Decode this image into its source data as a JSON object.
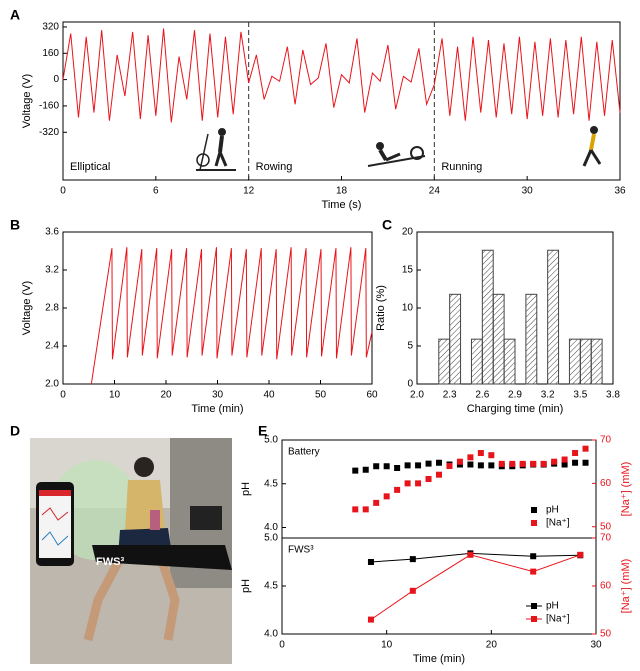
{
  "panel_labels": [
    "A",
    "B",
    "C",
    "D",
    "E"
  ],
  "photo": {
    "label": "FWS³"
  },
  "chart_data": [
    {
      "type": "line",
      "color": "#e8141b",
      "x": [
        0,
        0.5,
        1,
        1.5,
        2,
        2.5,
        3,
        3.5,
        4,
        4.5,
        5,
        5.5,
        6,
        6.5,
        7,
        7.5,
        8,
        8.5,
        9,
        9.5,
        10,
        10.5,
        11,
        11.5,
        12,
        12.5,
        13,
        13.5,
        14,
        14.5,
        15,
        15.5,
        16,
        16.5,
        17,
        17.5,
        18,
        18.5,
        19,
        19.5,
        20,
        20.5,
        21,
        21.5,
        22,
        22.5,
        23,
        23.5,
        24,
        24.5,
        25,
        25.5,
        26,
        26.5,
        27,
        27.5,
        28,
        28.5,
        29,
        29.5,
        30,
        30.5,
        31,
        31.5,
        32,
        32.5,
        33,
        33.5,
        34,
        34.5,
        35,
        35.5,
        36
      ],
      "values": [
        0,
        280,
        -230,
        260,
        -200,
        300,
        -250,
        150,
        -100,
        290,
        -240,
        270,
        -220,
        310,
        -260,
        140,
        -120,
        300,
        -250,
        280,
        -230,
        260,
        -210,
        290,
        -20,
        150,
        -120,
        20,
        -10,
        200,
        -150,
        180,
        -30,
        10,
        220,
        -170,
        30,
        -20,
        250,
        -200,
        40,
        -10,
        210,
        -180,
        20,
        -15,
        190,
        -150,
        -30,
        250,
        -220,
        200,
        -250,
        260,
        -200,
        240,
        -230,
        220,
        -210,
        260,
        -240,
        230,
        -220,
        250,
        -230,
        240,
        -210,
        260,
        -250,
        230,
        -220,
        240,
        -200
      ],
      "xlim": [
        0,
        36
      ],
      "ylim": [
        -610,
        350
      ],
      "xticks": [
        0,
        6,
        12,
        18,
        24,
        30,
        36
      ],
      "yticks": [
        -320,
        -160,
        0,
        160,
        320
      ],
      "x_label": "Time (s)",
      "y_label": "Voltage (V)",
      "vlines": [
        12,
        24
      ],
      "annotations": [
        "Elliptical",
        "Rowing",
        "Running"
      ]
    },
    {
      "type": "line",
      "color": "#e8141b",
      "x": [
        5.5,
        9.5,
        9.6,
        12.4,
        12.5,
        15.3,
        15.4,
        18.2,
        18.3,
        21.1,
        21.2,
        24,
        24.1,
        26.9,
        27,
        29.8,
        29.9,
        32.7,
        32.8,
        35.6,
        35.7,
        38.5,
        38.6,
        41.4,
        41.5,
        44.3,
        44.4,
        47.2,
        47.3,
        50.1,
        50.2,
        53,
        53.1,
        55.9,
        56,
        58.8,
        58.9,
        60
      ],
      "values": [
        2.0,
        3.43,
        2.26,
        3.44,
        2.28,
        3.42,
        2.3,
        3.43,
        2.27,
        3.42,
        2.3,
        3.43,
        2.28,
        3.42,
        2.3,
        3.44,
        2.27,
        3.43,
        2.3,
        3.42,
        2.28,
        3.43,
        2.3,
        3.42,
        2.26,
        3.44,
        2.3,
        3.43,
        2.28,
        3.42,
        2.29,
        3.43,
        2.27,
        3.44,
        2.3,
        3.43,
        2.28,
        2.55
      ],
      "xlim": [
        0,
        60
      ],
      "ylim": [
        2.0,
        3.6
      ],
      "xticks": [
        0,
        10,
        20,
        30,
        40,
        50,
        60
      ],
      "yticks": [
        {
          "value": 2.0,
          "label": "2.0"
        },
        2.4,
        2.8,
        3.2,
        3.6
      ],
      "x_label": "Time (min)",
      "y_label": "Voltage (V)"
    },
    {
      "type": "histogram",
      "color": "#444444",
      "bins": [
        2.2,
        2.3,
        2.4,
        2.5,
        2.6,
        2.7,
        2.8,
        2.9,
        3.0,
        3.1,
        3.2,
        3.3,
        3.4,
        3.5,
        3.6,
        3.7
      ],
      "values": [
        5.9,
        11.8,
        0,
        5.9,
        17.6,
        11.8,
        5.9,
        0,
        11.8,
        0,
        17.6,
        0,
        5.9,
        5.9,
        5.9
      ],
      "xlim": [
        2.0,
        3.8
      ],
      "ylim": [
        0,
        20
      ],
      "xticks": [
        {
          "value": 2.0,
          "label": "2.0"
        },
        2.3,
        2.6,
        2.9,
        3.2,
        3.5,
        3.8
      ],
      "yticks": [
        0,
        5,
        10,
        15,
        20
      ],
      "x_label": "Charging time (min)",
      "y_label": "Ratio (%)"
    },
    {
      "type": "scatter",
      "text": "Battery",
      "legend": "lower right",
      "x": [
        7,
        8,
        9,
        10,
        11,
        12,
        13,
        14,
        15,
        16,
        17,
        18,
        19,
        20,
        21,
        22,
        23,
        24,
        25,
        26,
        27,
        28,
        29
      ],
      "series": [
        {
          "name": "pH",
          "color": "#000000",
          "axis": "y",
          "values": [
            4.65,
            4.66,
            4.7,
            4.7,
            4.68,
            4.71,
            4.71,
            4.73,
            4.74,
            4.72,
            4.72,
            4.72,
            4.71,
            4.71,
            4.7,
            4.7,
            4.71,
            4.72,
            4.72,
            4.73,
            4.72,
            4.74,
            4.74
          ]
        },
        {
          "name": "[Na⁺]",
          "color": "#e8141b",
          "axis": "y2",
          "values": [
            54,
            54,
            55.5,
            57,
            58.5,
            60,
            60,
            61,
            62,
            64,
            65,
            66,
            67,
            66.5,
            64.5,
            64.5,
            64.5,
            64.5,
            64.5,
            65,
            65.5,
            67,
            68
          ]
        }
      ],
      "xlim": [
        0,
        30
      ],
      "ylim": [
        3.88,
        5.0
      ],
      "y2lim": [
        47.4,
        70
      ],
      "yticks": [
        {
          "value": 4.0,
          "label": "4.0"
        },
        4.5,
        {
          "value": 5.0,
          "label": "5.0"
        }
      ],
      "y2ticks": [
        50,
        60,
        70
      ],
      "y_label": "pH",
      "y2_label": "[Na⁺] (mM)"
    },
    {
      "type": "line",
      "text": "FWS³",
      "legend": "lower right",
      "x": [
        8.5,
        12.5,
        18,
        24,
        28.5
      ],
      "series": [
        {
          "name": "pH",
          "color": "#000000",
          "axis": "y",
          "values": [
            4.75,
            4.78,
            4.84,
            4.81,
            4.82
          ]
        },
        {
          "name": "[Na⁺]",
          "color": "#e8141b",
          "axis": "y2",
          "values": [
            53,
            59,
            66.5,
            63,
            66.5
          ]
        }
      ],
      "xlim": [
        0,
        30
      ],
      "ylim": [
        4.0,
        5.0
      ],
      "y2lim": [
        50,
        70
      ],
      "xticks": [
        0,
        10,
        20,
        30
      ],
      "yticks": [
        {
          "value": 4.0,
          "label": "4.0"
        },
        4.5,
        {
          "value": 5.0,
          "label": "5.0"
        }
      ],
      "y2ticks": [
        50,
        60,
        70
      ],
      "x_label": "Time (min)",
      "y_label": "pH",
      "y2_label": "[Na⁺] (mM)"
    }
  ]
}
